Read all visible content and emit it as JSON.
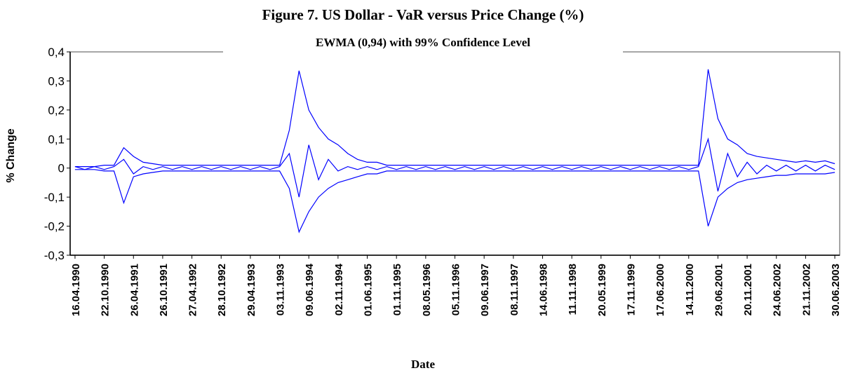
{
  "chart_data": {
    "type": "line",
    "title": "Figure 7. US Dollar - VaR versus Price Change (%)",
    "subtitle": "EWMA (0,94) with 99% Confidence Level",
    "x_label": "Date",
    "y_label": "% Change",
    "categories": [
      "16.04.1990",
      null,
      null,
      "22.10.1990",
      null,
      null,
      "26.04.1991",
      null,
      null,
      "26.10.1991",
      null,
      null,
      "27.04.1992",
      null,
      null,
      "28.10.1992",
      null,
      null,
      "29.04.1993",
      null,
      null,
      "03.11.1993",
      null,
      null,
      "09.06.1994",
      null,
      null,
      "02.11.1994",
      null,
      null,
      "01.06.1995",
      null,
      null,
      "01.11.1995",
      null,
      null,
      "08.05.1996",
      null,
      null,
      "05.11.1996",
      null,
      null,
      "09.06.1997",
      null,
      null,
      "08.11.1997",
      null,
      null,
      "14.06.1998",
      null,
      null,
      "11.11.1998",
      null,
      null,
      "20.05.1999",
      null,
      null,
      "17.11.1999",
      null,
      null,
      "17.06.2000",
      null,
      null,
      "14.11.2000",
      null,
      null,
      "29.06.2001",
      null,
      null,
      "20.11.2001",
      null,
      null,
      "24.06.2002",
      null,
      null,
      "21.11.2002",
      null,
      null,
      "30.06.2003"
    ],
    "series": [
      {
        "color": "#0000ff",
        "values": [
          0.005,
          0.005,
          0.005,
          0.01,
          0.01,
          0.07,
          0.04,
          0.02,
          0.015,
          0.01,
          0.01,
          0.01,
          0.01,
          0.01,
          0.01,
          0.01,
          0.01,
          0.01,
          0.01,
          0.01,
          0.01,
          0.01,
          0.13,
          0.335,
          0.2,
          0.14,
          0.1,
          0.08,
          0.05,
          0.03,
          0.02,
          0.02,
          0.01,
          0.01,
          0.01,
          0.01,
          0.01,
          0.01,
          0.01,
          0.01,
          0.01,
          0.01,
          0.01,
          0.01,
          0.01,
          0.01,
          0.01,
          0.01,
          0.01,
          0.01,
          0.01,
          0.01,
          0.01,
          0.01,
          0.01,
          0.01,
          0.01,
          0.01,
          0.01,
          0.01,
          0.01,
          0.01,
          0.01,
          0.01,
          0.01,
          0.34,
          0.17,
          0.1,
          0.08,
          0.05,
          0.04,
          0.035,
          0.03,
          0.025,
          0.02,
          0.025,
          0.02,
          0.025,
          0.015
        ]
      },
      {
        "color": "#0000ff",
        "values": [
          -0.005,
          -0.005,
          -0.005,
          -0.01,
          -0.01,
          -0.12,
          -0.03,
          -0.02,
          -0.015,
          -0.01,
          -0.01,
          -0.01,
          -0.01,
          -0.01,
          -0.01,
          -0.01,
          -0.01,
          -0.01,
          -0.01,
          -0.01,
          -0.01,
          -0.01,
          -0.07,
          -0.22,
          -0.15,
          -0.1,
          -0.07,
          -0.05,
          -0.04,
          -0.03,
          -0.02,
          -0.02,
          -0.01,
          -0.01,
          -0.01,
          -0.01,
          -0.01,
          -0.01,
          -0.01,
          -0.01,
          -0.01,
          -0.01,
          -0.01,
          -0.01,
          -0.01,
          -0.01,
          -0.01,
          -0.01,
          -0.01,
          -0.01,
          -0.01,
          -0.01,
          -0.01,
          -0.01,
          -0.01,
          -0.01,
          -0.01,
          -0.01,
          -0.01,
          -0.01,
          -0.01,
          -0.01,
          -0.01,
          -0.01,
          -0.01,
          -0.2,
          -0.1,
          -0.07,
          -0.05,
          -0.04,
          -0.035,
          -0.03,
          -0.025,
          -0.025,
          -0.02,
          -0.02,
          -0.02,
          -0.02,
          -0.015
        ]
      },
      {
        "color": "#0000ff",
        "values": [
          0.005,
          -0.005,
          0.005,
          -0.005,
          0.005,
          0.03,
          -0.02,
          0.005,
          -0.005,
          0.005,
          -0.005,
          0.005,
          -0.005,
          0.005,
          -0.005,
          0.005,
          -0.005,
          0.005,
          -0.005,
          0.005,
          -0.005,
          0.005,
          0.05,
          -0.1,
          0.08,
          -0.04,
          0.03,
          -0.01,
          0.005,
          -0.005,
          0.005,
          -0.005,
          0.005,
          -0.005,
          0.005,
          -0.005,
          0.005,
          -0.005,
          0.005,
          -0.005,
          0.005,
          -0.005,
          0.005,
          -0.005,
          0.005,
          -0.005,
          0.005,
          -0.005,
          0.005,
          -0.005,
          0.005,
          -0.005,
          0.005,
          -0.005,
          0.005,
          -0.005,
          0.005,
          -0.005,
          0.005,
          -0.005,
          0.005,
          -0.005,
          0.005,
          -0.005,
          0.005,
          0.1,
          -0.08,
          0.05,
          -0.03,
          0.02,
          -0.02,
          0.01,
          -0.01,
          0.01,
          -0.01,
          0.01,
          -0.01,
          0.01,
          -0.005
        ]
      }
    ],
    "ylim": [
      -0.3,
      0.4
    ],
    "yticks": [
      {
        "value": -0.3,
        "label": "-0,3"
      },
      {
        "value": -0.2,
        "label": "-0,2"
      },
      {
        "value": -0.1,
        "label": "-0,1"
      },
      0,
      {
        "value": 0.1,
        "label": "0,1"
      },
      {
        "value": 0.2,
        "label": "0,2"
      },
      {
        "value": 0.3,
        "label": "0,3"
      },
      {
        "value": 0.4,
        "label": "0,4"
      }
    ],
    "grid": false
  }
}
